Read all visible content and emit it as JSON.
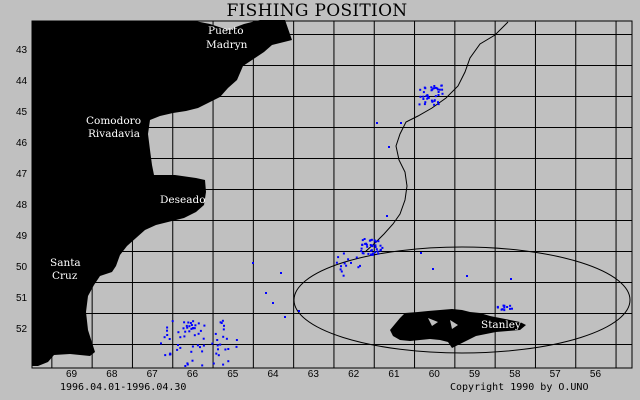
{
  "title": "FISHING POSITION",
  "lat_labels": [
    "43",
    "44",
    "45",
    "46",
    "47",
    "48",
    "49",
    "50",
    "51",
    "52"
  ],
  "lon_labels": [
    "69",
    "68",
    "67",
    "66",
    "65",
    "64",
    "63",
    "62",
    "61",
    "60",
    "59",
    "58",
    "57",
    "56"
  ],
  "places": {
    "puerto_madryn_1": "Puerto",
    "puerto_madryn_2": "Madryn",
    "comodoro_1": "Comodoro",
    "comodoro_2": "Rivadavia",
    "deseado": "Deseado",
    "santa_cruz_1": "Santa",
    "santa_cruz_2": "Cruz",
    "stanley": "Stanley"
  },
  "footer": {
    "date_range": "1996.04.01-1996.04.30",
    "copyright": "Copyright 1990 by O.UNO"
  },
  "colors": {
    "background": "#c0c0c0",
    "land": "#000000",
    "grid": "#000000",
    "fishing_points": "#0000ff"
  },
  "fishing_clusters": [
    {
      "name": "north_cluster_near_44S_60W",
      "count": 40
    },
    {
      "name": "central_cluster_near_49S_61_5W",
      "count": 40
    },
    {
      "name": "south_cluster_near_52S_66W",
      "count": 60
    },
    {
      "name": "scattered_points",
      "count": 30
    }
  ]
}
